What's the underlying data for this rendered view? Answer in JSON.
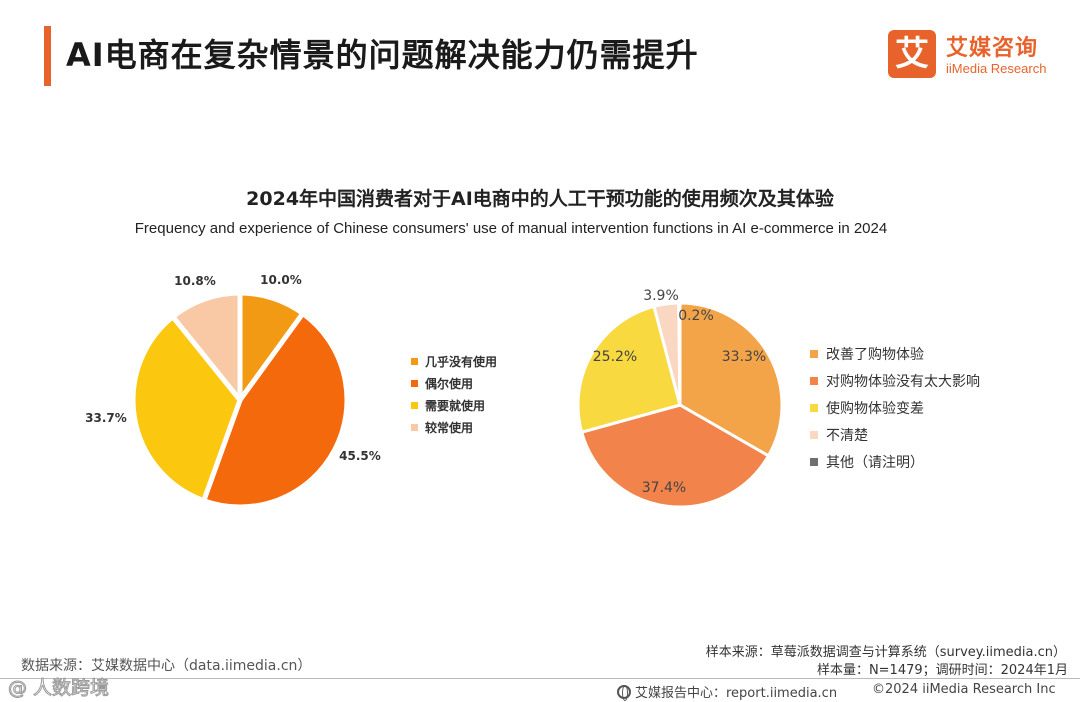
{
  "header": {
    "title": "AI电商在复杂情景的问题解决能力仍需提升",
    "logo_mark": "艾",
    "logo_cn": "艾媒咨询",
    "logo_en": "iiMedia Research"
  },
  "chart_title": "2024年中国消费者对于AI电商中的人工干预功能的使用频次及其体验",
  "chart_subtitle": "Frequency and experience of Chinese consumers' use of manual intervention functions in AI e-commerce in 2024",
  "chart_data": [
    {
      "type": "pie",
      "categories": [
        "几乎没有使用",
        "偶尔使用",
        "需要就使用",
        "较常使用"
      ],
      "values": [
        10.0,
        45.5,
        33.7,
        10.8
      ],
      "labels": [
        "10.0%",
        "45.5%",
        "33.7%",
        "10.8%"
      ],
      "colors": [
        "#f39a15",
        "#f5690d",
        "#fbc80f",
        "#f9c9a6"
      ],
      "legend": "right"
    },
    {
      "type": "pie",
      "categories": [
        "改善了购物体验",
        "对购物体验没有太大影响",
        "使购物体验变差",
        "不清楚",
        "其他（请注明）"
      ],
      "values": [
        33.3,
        37.4,
        25.2,
        3.9,
        0.2
      ],
      "labels": [
        "33.3%",
        "37.4%",
        "25.2%",
        "3.9%",
        "0.2%"
      ],
      "colors": [
        "#f4a448",
        "#f2844b",
        "#f8d93f",
        "#f9d7c1",
        "#6f6f6f"
      ],
      "legend": "right"
    }
  ],
  "footer": {
    "data_source": "数据来源：艾媒数据中心（data.iimedia.cn）",
    "sample_source": "样本来源：草莓派数据调查与计算系统（survey.iimedia.cn）",
    "sample_size": "样本量：N=1479；调研时间：2024年1月",
    "report_center": "艾媒报告中心：report.iimedia.cn",
    "copyright": "©2024  iiMedia Research  Inc",
    "watermark": "@ 人数跨境"
  }
}
